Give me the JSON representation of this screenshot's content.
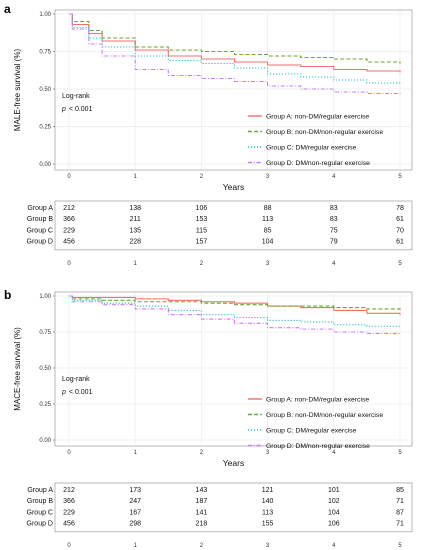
{
  "chart_data": [
    {
      "type": "line",
      "panel_label": "a",
      "ylabel": "MALE-free survival (%)",
      "xlabel": "Years",
      "xlim": [
        0,
        5
      ],
      "ylim": [
        0,
        1
      ],
      "yticks": [
        "0.00",
        "0.25",
        "0.50",
        "0.75",
        "1.00"
      ],
      "xticks": [
        "0",
        "1",
        "2",
        "3",
        "4",
        "5"
      ],
      "annotation": {
        "line1": "Log-rank",
        "p_label": "p",
        "p_value": "< 0.001"
      },
      "legend_position": "bottom-right",
      "grid": true,
      "series": [
        {
          "name": "Group A: non-DM/regular exercise",
          "color": "#f0716b",
          "dash": "solid",
          "x": [
            0,
            0.05,
            0.3,
            0.5,
            1,
            1.5,
            2,
            2.5,
            3,
            3.5,
            4,
            4.5,
            5
          ],
          "y": [
            1.0,
            0.93,
            0.87,
            0.82,
            0.76,
            0.72,
            0.7,
            0.68,
            0.66,
            0.65,
            0.63,
            0.62,
            0.61
          ]
        },
        {
          "name": "Group B: non-DM/non-regular exercise",
          "color": "#6fa530",
          "dash": "dashed",
          "x": [
            0,
            0.05,
            0.3,
            0.5,
            1,
            1.5,
            2,
            2.5,
            3,
            3.5,
            4,
            4.5,
            5
          ],
          "y": [
            1.0,
            0.95,
            0.89,
            0.84,
            0.78,
            0.76,
            0.75,
            0.73,
            0.72,
            0.71,
            0.7,
            0.68,
            0.67
          ]
        },
        {
          "name": "Group C: DM/regular exercise",
          "color": "#2bbfc4",
          "dash": "dotted",
          "x": [
            0,
            0.05,
            0.3,
            0.5,
            1,
            1.5,
            2,
            2.5,
            3,
            3.5,
            4,
            4.5,
            5
          ],
          "y": [
            1.0,
            0.91,
            0.84,
            0.78,
            0.72,
            0.69,
            0.67,
            0.64,
            0.6,
            0.58,
            0.56,
            0.54,
            0.53
          ]
        },
        {
          "name": "Group D: DM/non-regular exercise",
          "color": "#c77cff",
          "dash": "dashdot",
          "x": [
            0,
            0.05,
            0.3,
            0.5,
            1,
            1.5,
            2,
            2.5,
            3,
            3.5,
            4,
            4.5,
            5
          ],
          "y": [
            1.0,
            0.9,
            0.8,
            0.72,
            0.63,
            0.59,
            0.57,
            0.55,
            0.52,
            0.5,
            0.48,
            0.47,
            0.46
          ]
        }
      ],
      "risk_table": {
        "rows": [
          {
            "name": "Group A",
            "values": [
              "212",
              "138",
              "106",
              "88",
              "83",
              "78"
            ]
          },
          {
            "name": "Group B",
            "values": [
              "366",
              "211",
              "153",
              "113",
              "83",
              "61"
            ]
          },
          {
            "name": "Group C",
            "values": [
              "229",
              "135",
              "115",
              "85",
              "75",
              "70"
            ]
          },
          {
            "name": "Group D",
            "values": [
              "456",
              "228",
              "157",
              "104",
              "79",
              "61"
            ]
          }
        ]
      }
    },
    {
      "type": "line",
      "panel_label": "b",
      "ylabel": "MACE-free survival (%)",
      "xlabel": "Years",
      "xlim": [
        0,
        5
      ],
      "ylim": [
        0,
        1
      ],
      "yticks": [
        "0.00",
        "0.25",
        "0.50",
        "0.75",
        "1.00"
      ],
      "xticks": [
        "0",
        "1",
        "2",
        "3",
        "4",
        "5"
      ],
      "annotation": {
        "line1": "Log-rank",
        "p_label": "p",
        "p_value": "< 0.001"
      },
      "legend_position": "bottom-right",
      "grid": true,
      "series": [
        {
          "name": "Group A: non-DM/regular exercise",
          "color": "#f0716b",
          "dash": "solid",
          "x": [
            0,
            0.05,
            0.5,
            1,
            1.5,
            2,
            2.5,
            3,
            3.5,
            4,
            4.5,
            5
          ],
          "y": [
            1.0,
            0.99,
            0.99,
            0.98,
            0.97,
            0.96,
            0.95,
            0.93,
            0.92,
            0.9,
            0.88,
            0.87
          ]
        },
        {
          "name": "Group B: non-DM/non-regular exercise",
          "color": "#6fa530",
          "dash": "dashed",
          "x": [
            0,
            0.05,
            0.5,
            1,
            1.5,
            2,
            2.5,
            3,
            3.5,
            4,
            4.5,
            5
          ],
          "y": [
            1.0,
            0.98,
            0.97,
            0.96,
            0.96,
            0.95,
            0.94,
            0.93,
            0.93,
            0.92,
            0.91,
            0.9
          ]
        },
        {
          "name": "Group C: DM/regular exercise",
          "color": "#2bbfc4",
          "dash": "dotted",
          "x": [
            0,
            0.05,
            0.5,
            1,
            1.5,
            2,
            2.5,
            3,
            3.5,
            4,
            4.5,
            5
          ],
          "y": [
            1.0,
            0.97,
            0.95,
            0.93,
            0.9,
            0.87,
            0.85,
            0.83,
            0.82,
            0.8,
            0.79,
            0.78
          ]
        },
        {
          "name": "Group D: DM/non-regular exercise",
          "color": "#c77cff",
          "dash": "dashdot",
          "x": [
            0,
            0.05,
            0.5,
            1,
            1.5,
            2,
            2.5,
            3,
            3.5,
            4,
            4.5,
            5
          ],
          "y": [
            1.0,
            0.96,
            0.94,
            0.91,
            0.87,
            0.84,
            0.81,
            0.78,
            0.77,
            0.75,
            0.74,
            0.73
          ]
        }
      ],
      "risk_table": {
        "rows": [
          {
            "name": "Group A",
            "values": [
              "212",
              "173",
              "143",
              "121",
              "101",
              "85"
            ]
          },
          {
            "name": "Group B",
            "values": [
              "366",
              "247",
              "187",
              "140",
              "102",
              "71"
            ]
          },
          {
            "name": "Group C",
            "values": [
              "229",
              "167",
              "141",
              "113",
              "104",
              "87"
            ]
          },
          {
            "name": "Group D",
            "values": [
              "456",
              "298",
              "218",
              "155",
              "106",
              "71"
            ]
          }
        ]
      }
    }
  ]
}
